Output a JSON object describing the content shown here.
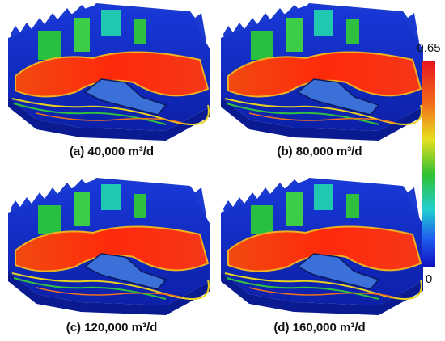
{
  "panels": [
    {
      "caption": "(a) 40,000 m³/d"
    },
    {
      "caption": "(b) 80,000 m³/d"
    },
    {
      "caption": "(c) 120,000 m³/d"
    },
    {
      "caption": "(d) 160,000 m³/d"
    }
  ],
  "colorbar": {
    "max": 0.65,
    "min": 0
  }
}
